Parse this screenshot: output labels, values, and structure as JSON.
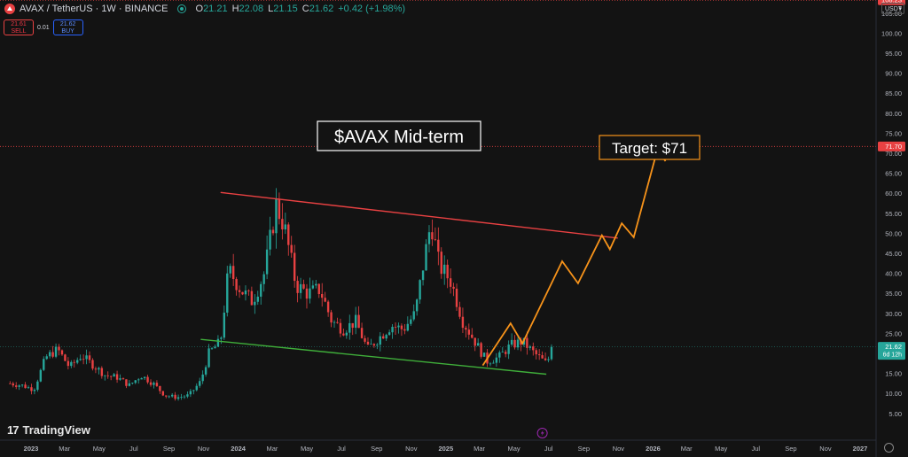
{
  "header": {
    "symbol": "AVAX / TetherUS · 1W · BINANCE",
    "o_label": "O",
    "o_value": "21.21",
    "h_label": "H",
    "h_value": "22.08",
    "l_label": "L",
    "l_value": "21.15",
    "c_label": "C",
    "c_value": "21.62",
    "change": "+0.42 (+1.98%)",
    "currency": "USDT"
  },
  "trade": {
    "sell_price": "21.61",
    "sell_label": "SELL",
    "spread": "0.01",
    "buy_price": "21.62",
    "buy_label": "BUY"
  },
  "annotations": {
    "title": "$AVAX Mid-term",
    "target": "Target: $71"
  },
  "price_labels": {
    "top": "108.23",
    "target": "71.70",
    "last": "21.62",
    "countdown": "6d 12h"
  },
  "branding": {
    "name": "TradingView"
  },
  "colors": {
    "background": "#131313",
    "up": "#26a69a",
    "down": "#e84142",
    "resistance": "#e84142",
    "support": "#3fae3a",
    "projection": "#f7931a"
  },
  "chart_data": {
    "type": "candlestick",
    "ylim": [
      0,
      110
    ],
    "y_ticks": [
      "5.00",
      "10.00",
      "15.00",
      "20.00",
      "25.00",
      "30.00",
      "35.00",
      "40.00",
      "45.00",
      "50.00",
      "55.00",
      "60.00",
      "65.00",
      "70.00",
      "75.00",
      "80.00",
      "85.00",
      "90.00",
      "95.00",
      "100.00",
      "105.00"
    ],
    "x_ticks": [
      "2023",
      "Mar",
      "May",
      "Jul",
      "Sep",
      "Nov",
      "2024",
      "Mar",
      "May",
      "Jul",
      "Sep",
      "Nov",
      "2025",
      "Mar",
      "May",
      "Jul",
      "Sep",
      "Nov",
      "2026",
      "Mar",
      "May",
      "Jul",
      "Sep",
      "Nov",
      "2027"
    ],
    "x_tick_dates": [
      "2023-01",
      "2023-03",
      "2023-05",
      "2023-07",
      "2023-09",
      "2023-11",
      "2024-01",
      "2024-03",
      "2024-05",
      "2024-07",
      "2024-09",
      "2024-11",
      "2025-01",
      "2025-03",
      "2025-05",
      "2025-07",
      "2025-09",
      "2025-11",
      "2026-01",
      "2026-03",
      "2026-05",
      "2026-07",
      "2026-09",
      "2026-11",
      "2027-01"
    ],
    "price_path": [
      [
        "2022-11-25",
        12.5
      ],
      [
        "2022-12-16",
        12.0
      ],
      [
        "2023-01-06",
        11.0
      ],
      [
        "2023-01-27",
        19.0
      ],
      [
        "2023-02-17",
        21.0
      ],
      [
        "2023-03-10",
        16.5
      ],
      [
        "2023-03-31",
        19.5
      ],
      [
        "2023-04-21",
        17.0
      ],
      [
        "2023-05-12",
        14.5
      ],
      [
        "2023-06-02",
        14.0
      ],
      [
        "2023-06-23",
        12.0
      ],
      [
        "2023-07-14",
        14.5
      ],
      [
        "2023-08-04",
        12.5
      ],
      [
        "2023-08-25",
        9.5
      ],
      [
        "2023-09-15",
        9.0
      ],
      [
        "2023-10-06",
        9.5
      ],
      [
        "2023-10-27",
        13.0
      ],
      [
        "2023-11-10",
        20.0
      ],
      [
        "2023-12-01",
        23.0
      ],
      [
        "2023-12-15",
        41.0
      ],
      [
        "2024-01-05",
        36.0
      ],
      [
        "2024-01-26",
        33.0
      ],
      [
        "2024-02-16",
        40.0
      ],
      [
        "2024-03-08",
        57.0
      ],
      [
        "2024-03-22",
        52.0
      ],
      [
        "2024-04-12",
        37.0
      ],
      [
        "2024-05-03",
        35.0
      ],
      [
        "2024-05-24",
        36.0
      ],
      [
        "2024-06-14",
        28.0
      ],
      [
        "2024-07-05",
        26.0
      ],
      [
        "2024-07-26",
        28.0
      ],
      [
        "2024-08-16",
        21.0
      ],
      [
        "2024-09-06",
        24.0
      ],
      [
        "2024-09-27",
        27.0
      ],
      [
        "2024-10-18",
        26.0
      ],
      [
        "2024-11-08",
        30.0
      ],
      [
        "2024-11-22",
        42.0
      ],
      [
        "2024-12-06",
        53.0
      ],
      [
        "2024-12-20",
        42.0
      ],
      [
        "2025-01-10",
        38.0
      ],
      [
        "2025-01-31",
        28.0
      ],
      [
        "2025-02-21",
        23.0
      ],
      [
        "2025-03-14",
        18.0
      ],
      [
        "2025-04-04",
        19.0
      ],
      [
        "2025-04-25",
        22.0
      ],
      [
        "2025-05-16",
        23.0
      ],
      [
        "2025-06-06",
        20.0
      ],
      [
        "2025-06-27",
        17.5
      ],
      [
        "2025-07-11",
        21.62
      ]
    ],
    "last_close": 21.62,
    "resistance_line": [
      [
        "2023-12-01",
        60.2
      ],
      [
        "2025-10-31",
        48.8
      ]
    ],
    "support_line": [
      [
        "2023-10-27",
        23.5
      ],
      [
        "2025-06-27",
        14.8
      ]
    ],
    "projection_path": [
      [
        "2025-03-07",
        17.0
      ],
      [
        "2025-04-25",
        27.5
      ],
      [
        "2025-05-16",
        22.5
      ],
      [
        "2025-07-25",
        43.0
      ],
      [
        "2025-08-22",
        37.5
      ],
      [
        "2025-10-03",
        49.5
      ],
      [
        "2025-10-17",
        46.0
      ],
      [
        "2025-11-07",
        52.5
      ],
      [
        "2025-11-28",
        49.0
      ],
      [
        "2026-01-09",
        71.0
      ],
      [
        "2026-01-23",
        68.0
      ]
    ],
    "target_level": 71.7,
    "top_level": 108.23
  }
}
